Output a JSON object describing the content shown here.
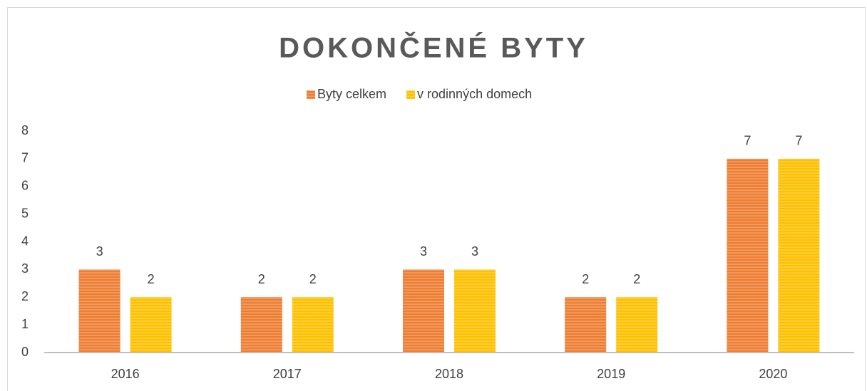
{
  "chart_data": {
    "type": "bar",
    "title": "DOKONČENÉ BYTY",
    "categories": [
      "2016",
      "2017",
      "2018",
      "2019",
      "2020"
    ],
    "series": [
      {
        "name": "Byty celkem",
        "color": "#ed7d31",
        "values": [
          3,
          2,
          3,
          2,
          7
        ]
      },
      {
        "name": "v rodinných domech",
        "color": "#ffc000",
        "values": [
          2,
          2,
          3,
          2,
          7
        ]
      }
    ],
    "ylim": [
      0,
      8
    ],
    "yticks": [
      0,
      1,
      2,
      3,
      4,
      5,
      6,
      7,
      8
    ],
    "grid": false,
    "legend": "top"
  }
}
